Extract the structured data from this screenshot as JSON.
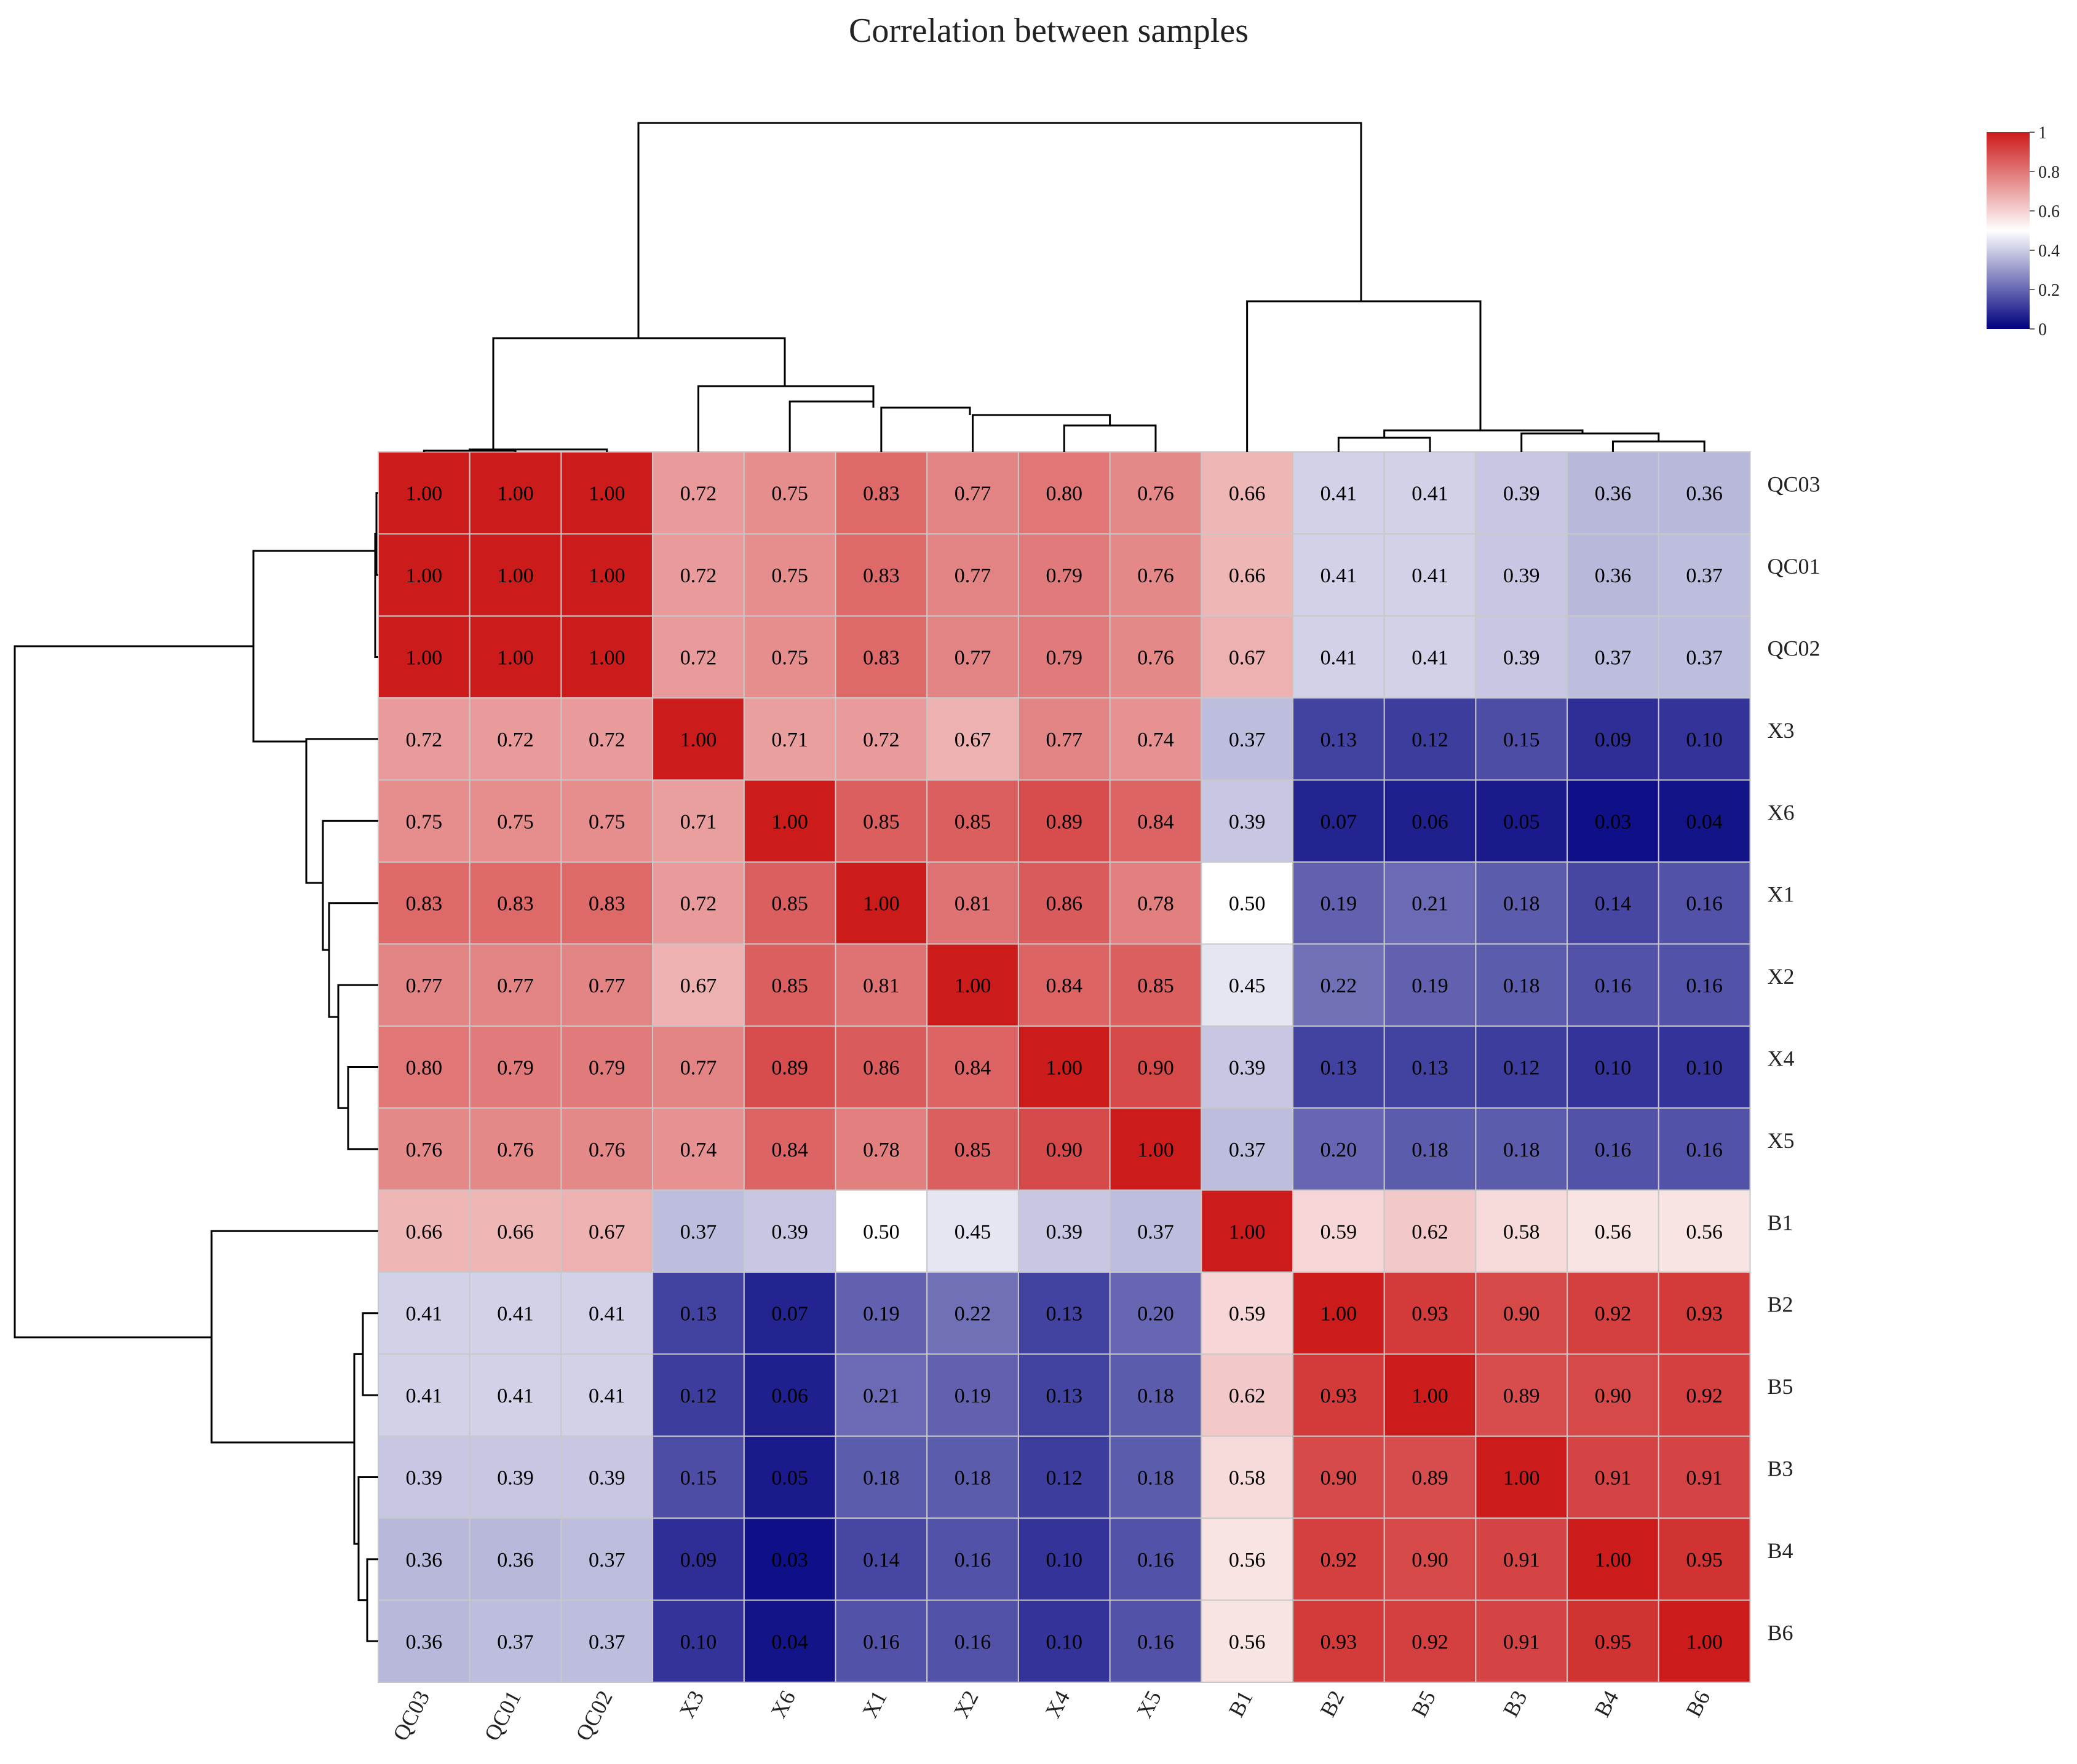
{
  "chart_data": {
    "type": "heatmap",
    "title": "Correlation between samples",
    "row_labels": [
      "QC03",
      "QC01",
      "QC02",
      "X3",
      "X6",
      "X1",
      "X2",
      "X4",
      "X5",
      "B1",
      "B2",
      "B5",
      "B3",
      "B4",
      "B6"
    ],
    "col_labels": [
      "QC03",
      "QC01",
      "QC02",
      "X3",
      "X6",
      "X1",
      "X2",
      "X4",
      "X5",
      "B1",
      "B2",
      "B5",
      "B3",
      "B4",
      "B6"
    ],
    "values": [
      [
        1.0,
        1.0,
        1.0,
        0.72,
        0.75,
        0.83,
        0.77,
        0.8,
        0.76,
        0.66,
        0.41,
        0.41,
        0.39,
        0.36,
        0.36
      ],
      [
        1.0,
        1.0,
        1.0,
        0.72,
        0.75,
        0.83,
        0.77,
        0.79,
        0.76,
        0.66,
        0.41,
        0.41,
        0.39,
        0.36,
        0.37
      ],
      [
        1.0,
        1.0,
        1.0,
        0.72,
        0.75,
        0.83,
        0.77,
        0.79,
        0.76,
        0.67,
        0.41,
        0.41,
        0.39,
        0.37,
        0.37
      ],
      [
        0.72,
        0.72,
        0.72,
        1.0,
        0.71,
        0.72,
        0.67,
        0.77,
        0.74,
        0.37,
        0.13,
        0.12,
        0.15,
        0.09,
        0.1
      ],
      [
        0.75,
        0.75,
        0.75,
        0.71,
        1.0,
        0.85,
        0.85,
        0.89,
        0.84,
        0.39,
        0.07,
        0.06,
        0.05,
        0.03,
        0.04
      ],
      [
        0.83,
        0.83,
        0.83,
        0.72,
        0.85,
        1.0,
        0.81,
        0.86,
        0.78,
        0.5,
        0.19,
        0.21,
        0.18,
        0.14,
        0.16
      ],
      [
        0.77,
        0.77,
        0.77,
        0.67,
        0.85,
        0.81,
        1.0,
        0.84,
        0.85,
        0.45,
        0.22,
        0.19,
        0.18,
        0.16,
        0.16
      ],
      [
        0.8,
        0.79,
        0.79,
        0.77,
        0.89,
        0.86,
        0.84,
        1.0,
        0.9,
        0.39,
        0.13,
        0.13,
        0.12,
        0.1,
        0.1
      ],
      [
        0.76,
        0.76,
        0.76,
        0.74,
        0.84,
        0.78,
        0.85,
        0.9,
        1.0,
        0.37,
        0.2,
        0.18,
        0.18,
        0.16,
        0.16
      ],
      [
        0.66,
        0.66,
        0.67,
        0.37,
        0.39,
        0.5,
        0.45,
        0.39,
        0.37,
        1.0,
        0.59,
        0.62,
        0.58,
        0.56,
        0.56
      ],
      [
        0.41,
        0.41,
        0.41,
        0.13,
        0.07,
        0.19,
        0.22,
        0.13,
        0.2,
        0.59,
        1.0,
        0.93,
        0.9,
        0.92,
        0.93
      ],
      [
        0.41,
        0.41,
        0.41,
        0.12,
        0.06,
        0.21,
        0.19,
        0.13,
        0.18,
        0.62,
        0.93,
        1.0,
        0.89,
        0.9,
        0.92
      ],
      [
        0.39,
        0.39,
        0.39,
        0.15,
        0.05,
        0.18,
        0.18,
        0.12,
        0.18,
        0.58,
        0.9,
        0.89,
        1.0,
        0.91,
        0.91
      ],
      [
        0.36,
        0.36,
        0.37,
        0.09,
        0.03,
        0.14,
        0.16,
        0.1,
        0.16,
        0.56,
        0.92,
        0.9,
        0.91,
        1.0,
        0.95
      ],
      [
        0.36,
        0.37,
        0.37,
        0.1,
        0.04,
        0.16,
        0.16,
        0.1,
        0.16,
        0.56,
        0.93,
        0.92,
        0.91,
        0.95,
        1.0
      ]
    ],
    "color_scale": {
      "min": 0,
      "max": 1,
      "low": "#00007f",
      "mid": "#ffffff",
      "high": "#cc1b1b",
      "mid_value": 0.5
    },
    "legend": {
      "ticks": [
        "1",
        "0.8",
        "0.6",
        "0.4",
        "0.2",
        "0"
      ],
      "placement": "top-right"
    }
  }
}
